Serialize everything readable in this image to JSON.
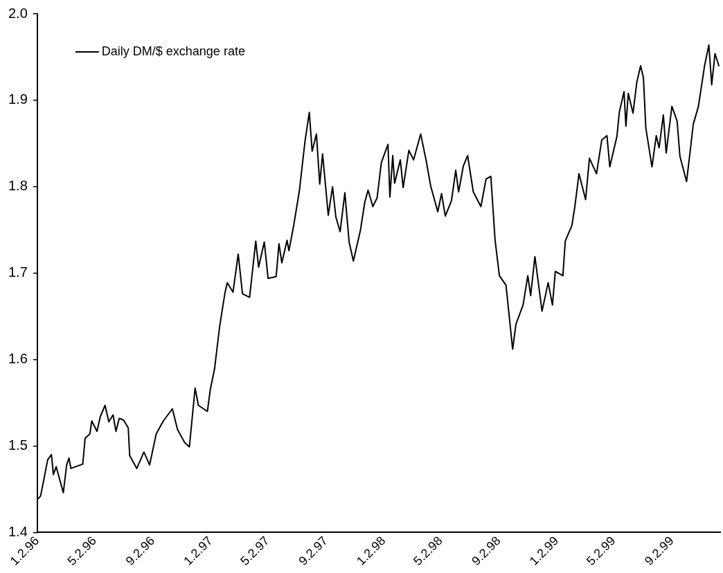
{
  "chart_data": {
    "type": "line",
    "legend": "top left",
    "xlim": [
      "1996-01-02",
      "1999-12-13"
    ],
    "xticks": [
      {
        "value": "1996-01-02",
        "label": "1.2.96"
      },
      {
        "value": "1996-05-02",
        "label": "5.2.96"
      },
      {
        "value": "1996-09-02",
        "label": "9.2.96"
      },
      {
        "value": "1997-01-02",
        "label": "1.2.97"
      },
      {
        "value": "1997-05-02",
        "label": "5.2.97"
      },
      {
        "value": "1997-09-02",
        "label": "9.2.97"
      },
      {
        "value": "1998-01-02",
        "label": "1.2.98"
      },
      {
        "value": "1998-05-02",
        "label": "5.2.98"
      },
      {
        "value": "1998-09-02",
        "label": "9.2.98"
      },
      {
        "value": "1999-01-02",
        "label": "1.2.99"
      },
      {
        "value": "1999-05-02",
        "label": "5.2.99"
      },
      {
        "value": "1999-09-02",
        "label": "9.2.99"
      }
    ],
    "ylim": [
      1.4,
      2.0
    ],
    "yticks": [
      1.4,
      1.5,
      1.6,
      1.7,
      1.8,
      1.9,
      {
        "value": 2.0,
        "label": "2.0"
      }
    ],
    "series": [
      {
        "name": "Daily DM/$ exchange rate",
        "color": "#000000",
        "x": [
          "1996-01-02",
          "1996-01-09",
          "1996-01-24",
          "1996-02-01",
          "1996-02-05",
          "1996-02-11",
          "1996-02-26",
          "1996-03-04",
          "1996-03-09",
          "1996-03-13",
          "1996-04-07",
          "1996-04-12",
          "1996-04-22",
          "1996-04-26",
          "1996-05-07",
          "1996-05-14",
          "1996-05-24",
          "1996-06-01",
          "1996-06-10",
          "1996-06-16",
          "1996-06-23",
          "1996-07-02",
          "1996-07-12",
          "1996-07-15",
          "1996-07-30",
          "1996-08-14",
          "1996-08-26",
          "1996-09-09",
          "1996-09-24",
          "1996-10-13",
          "1996-10-24",
          "1996-11-08",
          "1996-11-18",
          "1996-11-30",
          "1996-12-07",
          "1996-12-26",
          "1997-01-01",
          "1997-01-10",
          "1997-01-21",
          "1997-02-01",
          "1997-02-06",
          "1997-02-18",
          "1997-03-01",
          "1997-03-10",
          "1997-03-25",
          "1997-04-07",
          "1997-04-13",
          "1997-04-25",
          "1997-05-03",
          "1997-05-20",
          "1997-05-26",
          "1997-06-01",
          "1997-06-12",
          "1997-06-16",
          "1997-06-26",
          "1997-07-08",
          "1997-07-20",
          "1997-07-29",
          "1997-08-04",
          "1997-08-13",
          "1997-08-20",
          "1997-08-26",
          "1997-09-07",
          "1997-09-16",
          "1997-09-23",
          "1997-10-02",
          "1997-10-12",
          "1997-10-21",
          "1997-10-30",
          "1997-11-14",
          "1997-11-23",
          "1997-11-30",
          "1997-12-10",
          "1997-12-19",
          "1997-12-28",
          "1998-01-11",
          "1998-01-15",
          "1998-01-21",
          "1998-01-25",
          "1998-02-06",
          "1998-02-12",
          "1998-02-24",
          "1998-03-06",
          "1998-03-21",
          "1998-04-02",
          "1998-04-11",
          "1998-04-26",
          "1998-05-04",
          "1998-05-12",
          "1998-05-25",
          "1998-06-03",
          "1998-06-09",
          "1998-06-19",
          "1998-06-28",
          "1998-07-10",
          "1998-07-26",
          "1998-08-06",
          "1998-08-16",
          "1998-08-25",
          "1998-09-03",
          "1998-09-17",
          "1998-10-01",
          "1998-10-08",
          "1998-10-23",
          "1998-11-02",
          "1998-11-08",
          "1998-11-17",
          "1998-12-02",
          "1998-12-15",
          "1998-12-24",
          "1998-12-30",
          "1999-01-15",
          "1999-01-20",
          "1999-02-03",
          "1999-02-09",
          "1999-02-18",
          "1999-03-04",
          "1999-03-12",
          "1999-03-27",
          "1999-04-07",
          "1999-04-18",
          "1999-04-24",
          "1999-05-09",
          "1999-05-14",
          "1999-05-24",
          "1999-05-28",
          "1999-06-02",
          "1999-06-12",
          "1999-06-20",
          "1999-06-28",
          "1999-07-04",
          "1999-07-09",
          "1999-07-22",
          "1999-07-31",
          "1999-08-06",
          "1999-08-15",
          "1999-08-21",
          "1999-09-02",
          "1999-09-13",
          "1999-09-19",
          "1999-10-03",
          "1999-10-11",
          "1999-10-17",
          "1999-10-28",
          "1999-11-10",
          "1999-11-19",
          "1999-11-25",
          "1999-12-02",
          "1999-12-10"
        ],
        "values": [
          1.438,
          1.442,
          1.484,
          1.49,
          1.467,
          1.476,
          1.446,
          1.478,
          1.486,
          1.474,
          1.479,
          1.509,
          1.514,
          1.529,
          1.517,
          1.534,
          1.547,
          1.528,
          1.536,
          1.517,
          1.532,
          1.53,
          1.521,
          1.489,
          1.474,
          1.493,
          1.478,
          1.514,
          1.529,
          1.543,
          1.519,
          1.504,
          1.499,
          1.567,
          1.547,
          1.54,
          1.565,
          1.589,
          1.639,
          1.677,
          1.689,
          1.678,
          1.722,
          1.676,
          1.672,
          1.737,
          1.707,
          1.736,
          1.694,
          1.696,
          1.734,
          1.712,
          1.738,
          1.726,
          1.755,
          1.795,
          1.853,
          1.886,
          1.841,
          1.861,
          1.803,
          1.838,
          1.767,
          1.8,
          1.765,
          1.748,
          1.793,
          1.736,
          1.714,
          1.75,
          1.782,
          1.796,
          1.777,
          1.787,
          1.828,
          1.849,
          1.788,
          1.836,
          1.804,
          1.831,
          1.799,
          1.842,
          1.831,
          1.861,
          1.829,
          1.801,
          1.771,
          1.792,
          1.766,
          1.784,
          1.819,
          1.794,
          1.824,
          1.836,
          1.794,
          1.777,
          1.809,
          1.812,
          1.738,
          1.697,
          1.686,
          1.612,
          1.641,
          1.663,
          1.697,
          1.674,
          1.719,
          1.656,
          1.689,
          1.663,
          1.702,
          1.697,
          1.737,
          1.755,
          1.776,
          1.815,
          1.785,
          1.833,
          1.815,
          1.854,
          1.859,
          1.823,
          1.858,
          1.886,
          1.91,
          1.87,
          1.908,
          1.885,
          1.921,
          1.94,
          1.926,
          1.868,
          1.823,
          1.859,
          1.845,
          1.883,
          1.839,
          1.893,
          1.876,
          1.835,
          1.806,
          1.843,
          1.872,
          1.893,
          1.94,
          1.964,
          1.918,
          1.954,
          1.94
        ]
      }
    ]
  }
}
